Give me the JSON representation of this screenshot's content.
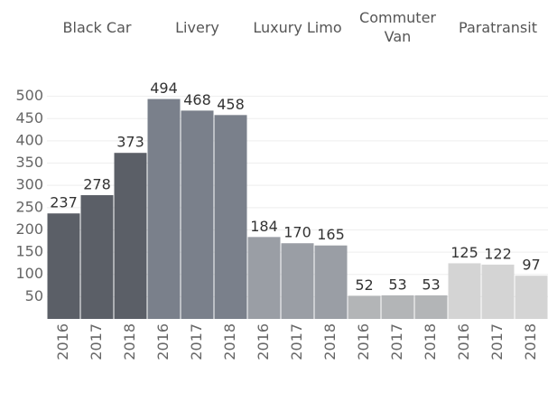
{
  "chart_data": {
    "type": "bar",
    "categories": [
      "2016",
      "2017",
      "2018"
    ],
    "series": [
      {
        "name": "Black Car",
        "color": "#5b5f67",
        "values": [
          237,
          278,
          373
        ]
      },
      {
        "name": "Livery",
        "color": "#7a808b",
        "values": [
          494,
          468,
          458
        ]
      },
      {
        "name": "Luxury Limo",
        "color": "#9a9ea5",
        "values": [
          184,
          170,
          165
        ]
      },
      {
        "name": "Commuter Van",
        "color": "#b3b5b7",
        "values": [
          52,
          53,
          53
        ]
      },
      {
        "name": "Paratransit",
        "color": "#d4d4d4",
        "values": [
          125,
          122,
          97
        ]
      }
    ],
    "ylim": [
      0,
      550
    ],
    "yticks": [
      50,
      100,
      150,
      200,
      250,
      300,
      350,
      400,
      450,
      500
    ],
    "grid": true
  }
}
